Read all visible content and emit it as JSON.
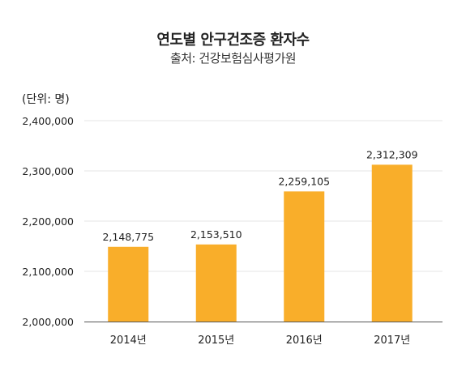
{
  "title": "연도별 안구건조증 환자수",
  "subtitle": "출처: 건강보험심사평가원",
  "unit_label": "(단위: 명)",
  "colors": {
    "bar": "#F9AE2A",
    "grid": "#E6E6E6",
    "axis": "#555555",
    "text": "#222222"
  },
  "chart_data": {
    "type": "bar",
    "title": "연도별 안구건조증 환자수",
    "subtitle": "출처: 건강보험심사평가원",
    "unit": "(단위: 명)",
    "categories": [
      "2014년",
      "2015년",
      "2016년",
      "2017년"
    ],
    "values": [
      2148775,
      2153510,
      2259105,
      2312309
    ],
    "value_labels": [
      "2,148,775",
      "2,153,510",
      "2,259,105",
      "2,312,309"
    ],
    "ylim": [
      2000000,
      2400000
    ],
    "yticks": [
      2000000,
      2100000,
      2200000,
      2300000,
      2400000
    ],
    "ytick_labels": [
      "2,000,000",
      "2,100,000",
      "2,200,000",
      "2,300,000",
      "2,400,000"
    ],
    "grid": true,
    "legend": "none",
    "xlabel": "",
    "ylabel": ""
  }
}
